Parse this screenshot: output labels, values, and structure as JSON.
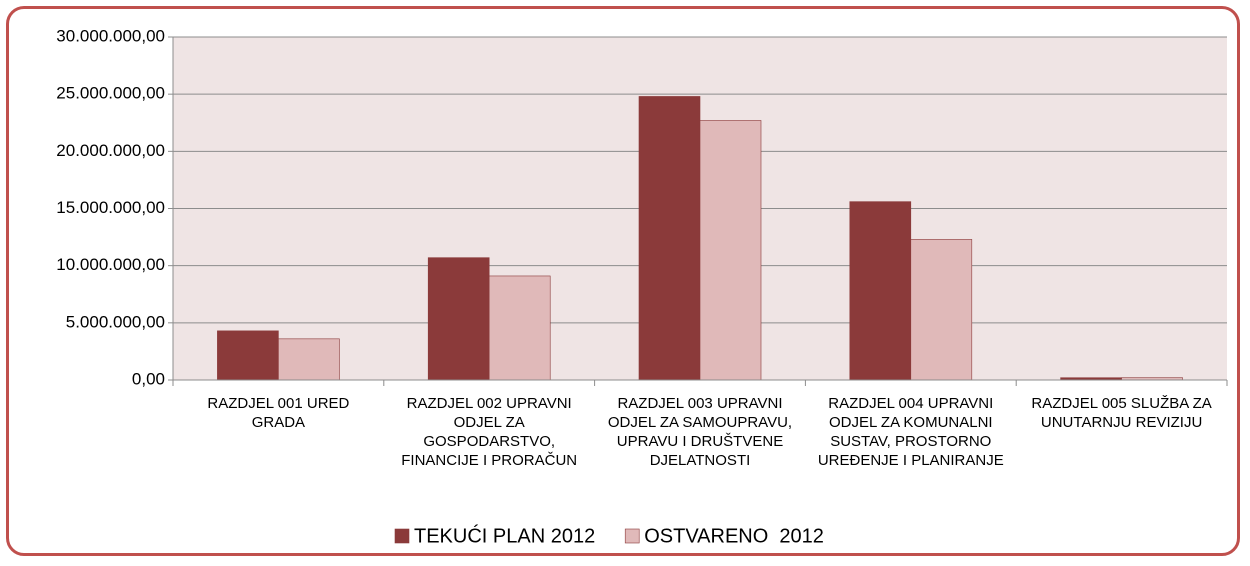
{
  "chart_data": {
    "type": "bar",
    "categories": [
      "RAZDJEL 001 URED GRADA",
      "RAZDJEL 002 UPRAVNI ODJEL ZA GOSPODARSTVO, FINANCIJE I PRORAČUN",
      "RAZDJEL 003 UPRAVNI ODJEL ZA SAMOUPRAVU, UPRAVU I DRUŠTVENE DJELATNOSTI",
      "RAZDJEL 004 UPRAVNI ODJEL ZA KOMUNALNI SUSTAV, PROSTORNO UREĐENJE I PLANIRANJE",
      "RAZDJEL 005 SLUŽBA ZA UNUTARNJU REVIZIJU"
    ],
    "series": [
      {
        "name": "TEKUĆI PLAN 2012",
        "color": "#8b3a3a",
        "values": [
          4300000,
          10700000,
          24800000,
          15600000,
          200000
        ]
      },
      {
        "name": "OSTVARENO  2012",
        "color": "#e0b9b9",
        "values": [
          3600000,
          9100000,
          22700000,
          12300000,
          200000
        ]
      }
    ],
    "ylim": [
      0,
      30000000
    ],
    "yticks": [
      {
        "value": 0,
        "label": "0,00"
      },
      {
        "value": 5000000,
        "label": "5.000.000,00"
      },
      {
        "value": 10000000,
        "label": "10.000.000,00"
      },
      {
        "value": 15000000,
        "label": "15.000.000,00"
      },
      {
        "value": 20000000,
        "label": "20.000.000,00"
      },
      {
        "value": 25000000,
        "label": "25.000.000,00"
      },
      {
        "value": 30000000,
        "label": "30.000.000,00"
      }
    ],
    "grid": true,
    "legend": "bottom"
  }
}
